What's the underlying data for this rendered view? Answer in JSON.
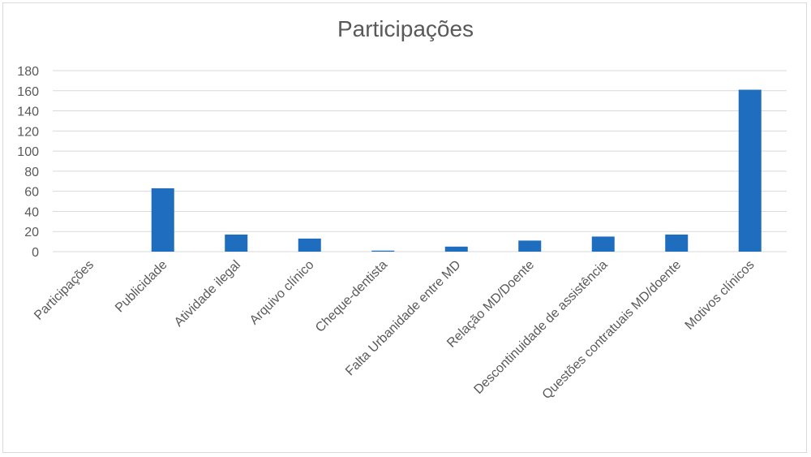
{
  "chart_data": {
    "type": "bar",
    "title": "Participações",
    "xlabel": "",
    "ylabel": "",
    "categories": [
      "Participações",
      "Publicidade",
      "Atividade ilegal",
      "Arquivo clínico",
      "Cheque-dentista",
      "Falta Urbanidade entre MD",
      "Relação MD/Doente",
      "Descontinuidade de assistência",
      "Questões contratuais MD/doente",
      "Motivos clínicos"
    ],
    "values": [
      0,
      63,
      17,
      13,
      1,
      5,
      11,
      15,
      17,
      161
    ],
    "ylim": [
      0,
      180
    ],
    "yticks": [
      0,
      20,
      40,
      60,
      80,
      100,
      120,
      140,
      160,
      180
    ],
    "grid": true,
    "legend": "none",
    "colors": {
      "bar": "#1f6dbf",
      "grid": "#d9d9d9",
      "text": "#595959"
    }
  }
}
